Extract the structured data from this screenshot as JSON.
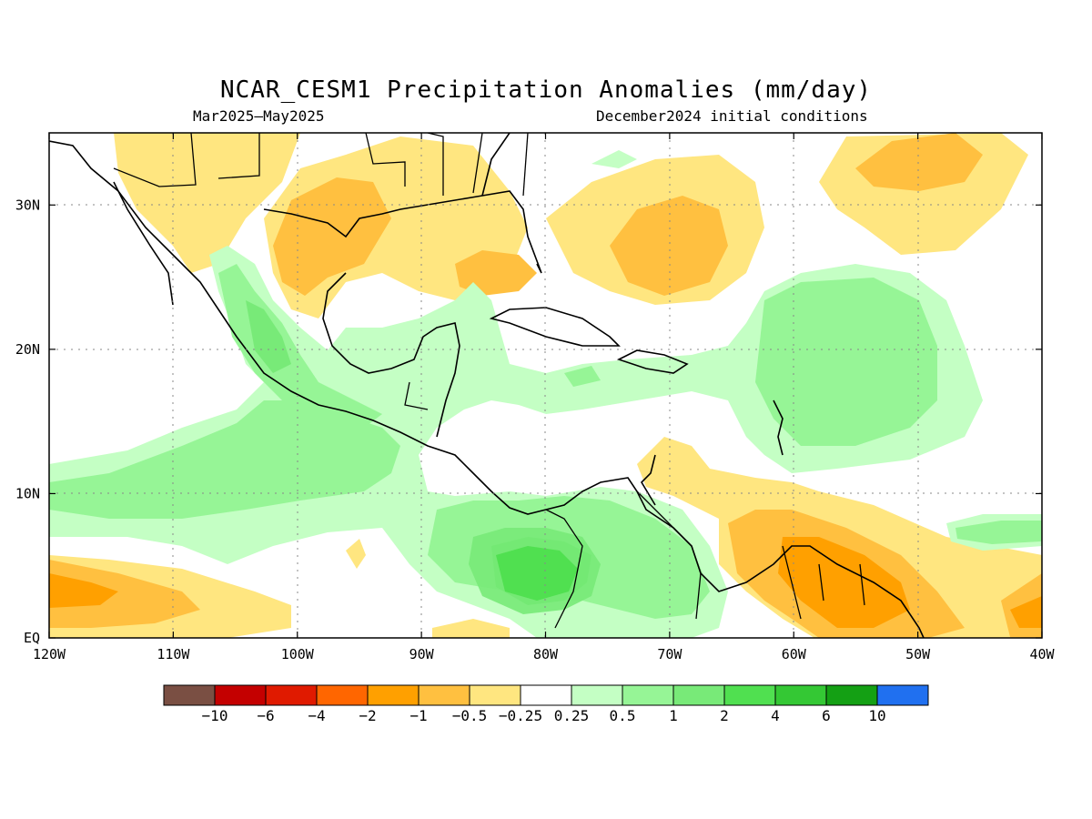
{
  "title": "NCAR_CESM1 Precipitation Anomalies (mm/day)",
  "subtitle_left": "Mar2025–May2025",
  "subtitle_right": "December2024 initial conditions",
  "map": {
    "lon_range": [
      -120,
      -40
    ],
    "lat_range": [
      0,
      35
    ],
    "x_ticks": [
      {
        "lon": -120,
        "label": "120W"
      },
      {
        "lon": -110,
        "label": "110W"
      },
      {
        "lon": -100,
        "label": "100W"
      },
      {
        "lon": -90,
        "label": "90W"
      },
      {
        "lon": -80,
        "label": "80W"
      },
      {
        "lon": -70,
        "label": "70W"
      },
      {
        "lon": -60,
        "label": "60W"
      },
      {
        "lon": -50,
        "label": "50W"
      },
      {
        "lon": -40,
        "label": "40W"
      }
    ],
    "y_ticks": [
      {
        "lat": 0,
        "label": "EQ"
      },
      {
        "lat": 10,
        "label": "10N"
      },
      {
        "lat": 20,
        "label": "20N"
      },
      {
        "lat": 30,
        "label": "30N"
      }
    ],
    "grid": "dotted"
  },
  "colorbar": {
    "colors": [
      "#7a4f43",
      "#c40000",
      "#e01a00",
      "#ff6600",
      "#ffa000",
      "#ffc040",
      "#ffe680",
      "#ffffff",
      "#c4ffc4",
      "#96f596",
      "#78ea78",
      "#50e050",
      "#34c834",
      "#14a014",
      "#2070f0"
    ],
    "labels": [
      "−10",
      "−6",
      "−4",
      "−2",
      "−1",
      "−0.5",
      "−0.25",
      "0.25",
      "0.5",
      "1",
      "2",
      "4",
      "6",
      "10"
    ]
  }
}
